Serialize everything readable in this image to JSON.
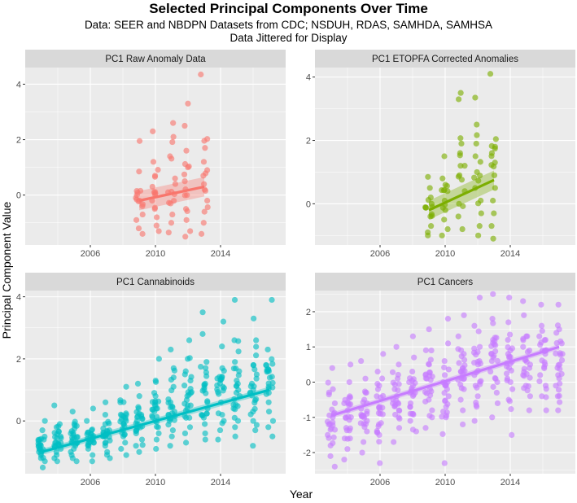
{
  "title": "Selected Principal Components Over Time",
  "subtitle_line1": "Data: SEER and NBDPN Datasets from CDC; NSDUH, RDAS, SAMHDA, SAMHSA",
  "subtitle_line2": "Data Jittered for Display",
  "xlabel": "Year",
  "ylabel": "Principal Component Value",
  "chart_data": [
    {
      "type": "scatter",
      "title": "PC1 Raw Anomaly Data",
      "color": "#F8766D",
      "xlim": [
        2002,
        2018
      ],
      "ylim": [
        -1.8,
        4.6
      ],
      "xticks": [
        2006,
        2010,
        2014
      ],
      "yticks": [
        0,
        2,
        4
      ],
      "x_range": [
        2009,
        2013
      ],
      "trend": {
        "x0": 2009,
        "y0": -0.2,
        "x1": 2013,
        "y1": 0.3,
        "band0": 0.35,
        "band1": 0.35
      },
      "groups": [
        {
          "x": 2009,
          "values": [
            1.95,
            0.85,
            0.15,
            -0.1,
            -0.4,
            -0.7,
            -0.9,
            -1.2,
            -1.4,
            0.0
          ]
        },
        {
          "x": 2010,
          "values": [
            2.3,
            1.2,
            0.7,
            0.3,
            -0.2,
            -0.5,
            -0.8,
            -1.1,
            -1.3,
            0.1
          ]
        },
        {
          "x": 2011,
          "values": [
            2.6,
            2.1,
            1.4,
            0.6,
            0.1,
            -0.3,
            -0.7,
            -1.0,
            -1.35,
            0.4
          ]
        },
        {
          "x": 2012,
          "values": [
            3.3,
            2.5,
            1.6,
            1.0,
            0.5,
            0.0,
            -0.5,
            -0.9,
            -1.3,
            -1.5
          ]
        },
        {
          "x": 2013,
          "values": [
            4.35,
            1.7,
            1.2,
            0.7,
            0.2,
            -0.2,
            -0.6,
            -1.0,
            -1.4,
            0.9
          ]
        }
      ]
    },
    {
      "type": "scatter",
      "title": "PC1 ETOPFA Corrected Anomalies",
      "color": "#7CAE00",
      "xlim": [
        2002,
        2018
      ],
      "ylim": [
        -1.3,
        4.3
      ],
      "xticks": [
        2006,
        2010,
        2014
      ],
      "yticks": [
        0,
        2,
        4
      ],
      "x_range": [
        2009,
        2013
      ],
      "trend": {
        "x0": 2009,
        "y0": -0.2,
        "x1": 2013,
        "y1": 0.75,
        "band0": 0.3,
        "band1": 0.3
      },
      "groups": [
        {
          "x": 2009,
          "values": [
            0.85,
            0.5,
            0.2,
            -0.1,
            -0.4,
            -0.7,
            -0.9,
            -1.0,
            0.0
          ]
        },
        {
          "x": 2010,
          "values": [
            1.5,
            0.8,
            0.4,
            0.1,
            -0.2,
            -0.5,
            -0.8,
            -1.0,
            0.6
          ]
        },
        {
          "x": 2011,
          "values": [
            3.5,
            3.3,
            1.9,
            1.6,
            0.9,
            0.4,
            0.0,
            -0.4,
            -0.8,
            1.2
          ]
        },
        {
          "x": 2012,
          "values": [
            3.35,
            2.5,
            1.5,
            1.0,
            0.5,
            0.1,
            -0.3,
            -0.7,
            -1.0,
            1.9
          ]
        },
        {
          "x": 2013,
          "values": [
            4.1,
            1.8,
            1.3,
            0.9,
            0.5,
            0.1,
            -0.3,
            -0.7,
            -1.1,
            1.6
          ]
        }
      ]
    },
    {
      "type": "scatter",
      "title": "PC1 Cannabinoids",
      "color": "#00BFC4",
      "xlim": [
        2002,
        2018
      ],
      "ylim": [
        -1.7,
        4.2
      ],
      "xticks": [
        2006,
        2010,
        2014
      ],
      "yticks": [
        0,
        2,
        4
      ],
      "x_range": [
        2003,
        2017
      ],
      "trend": {
        "x0": 2003,
        "y0": -1.0,
        "x1": 2017,
        "y1": 1.0,
        "band0": 0.1,
        "band1": 0.1
      },
      "groups": [
        {
          "x": 2003,
          "values": [
            0.0,
            -0.3,
            -0.6,
            -0.8,
            -1.0,
            -1.1,
            -1.2,
            -1.3,
            -1.5,
            -0.9
          ]
        },
        {
          "x": 2004,
          "values": [
            0.5,
            -0.2,
            -0.5,
            -0.7,
            -0.9,
            -1.0,
            -1.1,
            -1.2,
            -1.3,
            -0.8
          ]
        },
        {
          "x": 2005,
          "values": [
            0.3,
            -0.1,
            -0.4,
            -0.6,
            -0.8,
            -0.9,
            -1.0,
            -1.2,
            -1.3,
            -0.7
          ]
        },
        {
          "x": 2006,
          "values": [
            0.4,
            0.0,
            -0.3,
            -0.5,
            -0.7,
            -0.8,
            -0.9,
            -1.1,
            -1.3,
            -0.6
          ]
        },
        {
          "x": 2007,
          "values": [
            0.6,
            0.2,
            -0.1,
            -0.3,
            -0.5,
            -0.7,
            -0.8,
            -1.0,
            -1.2,
            -0.4
          ]
        },
        {
          "x": 2008,
          "values": [
            1.1,
            0.6,
            0.2,
            -0.1,
            -0.3,
            -0.5,
            -0.7,
            -0.9,
            -1.1,
            0.0
          ]
        },
        {
          "x": 2009,
          "values": [
            1.2,
            0.8,
            0.4,
            0.0,
            -0.2,
            -0.4,
            -0.6,
            -0.8,
            -1.0,
            0.2
          ]
        },
        {
          "x": 2010,
          "values": [
            2.0,
            1.3,
            0.8,
            0.4,
            0.0,
            -0.2,
            -0.4,
            -0.6,
            -0.9,
            0.6
          ]
        },
        {
          "x": 2011,
          "values": [
            2.3,
            1.7,
            1.1,
            0.6,
            0.2,
            0.0,
            -0.3,
            -0.5,
            -0.8,
            1.4
          ]
        },
        {
          "x": 2012,
          "values": [
            2.6,
            2.0,
            1.3,
            0.8,
            0.4,
            0.1,
            -0.2,
            -0.4,
            -0.7,
            1.6
          ]
        },
        {
          "x": 2013,
          "values": [
            3.5,
            2.8,
            1.9,
            1.2,
            0.6,
            0.2,
            -0.1,
            -0.4,
            -0.6,
            1.0
          ]
        },
        {
          "x": 2014,
          "values": [
            3.2,
            2.4,
            1.7,
            1.1,
            0.6,
            0.2,
            0.0,
            -0.3,
            -0.6,
            1.4
          ]
        },
        {
          "x": 2015,
          "values": [
            3.9,
            2.6,
            1.9,
            1.3,
            0.8,
            0.4,
            0.1,
            -0.2,
            -0.5,
            1.6
          ]
        },
        {
          "x": 2016,
          "values": [
            3.3,
            2.6,
            1.8,
            1.2,
            0.7,
            0.3,
            0.0,
            -0.3,
            -0.8,
            1.0
          ]
        },
        {
          "x": 2017,
          "values": [
            3.9,
            2.3,
            1.6,
            1.1,
            0.6,
            0.3,
            0.0,
            -0.2,
            -0.5,
            1.8
          ]
        }
      ]
    },
    {
      "type": "scatter",
      "title": "PC1 Cancers",
      "color": "#C77CFF",
      "xlim": [
        2002,
        2018
      ],
      "ylim": [
        -2.6,
        2.6
      ],
      "xticks": [
        2006,
        2010,
        2014
      ],
      "yticks": [
        -2,
        -1,
        0,
        1,
        2
      ],
      "x_range": [
        2003,
        2017
      ],
      "trend": {
        "x0": 2003,
        "y0": -0.95,
        "x1": 2017,
        "y1": 1.0,
        "band0": 0.08,
        "band1": 0.08
      },
      "groups": [
        {
          "x": 2003,
          "values": [
            0.4,
            -0.2,
            -0.6,
            -0.9,
            -1.2,
            -1.5,
            -1.8,
            -2.1,
            -2.4,
            -1.0
          ]
        },
        {
          "x": 2004,
          "values": [
            0.5,
            0.0,
            -0.4,
            -0.8,
            -1.0,
            -1.3,
            -1.6,
            -1.9,
            -2.2,
            -0.6
          ]
        },
        {
          "x": 2005,
          "values": [
            0.6,
            0.1,
            -0.3,
            -0.6,
            -0.9,
            -1.1,
            -1.4,
            -1.7,
            -2.0,
            -0.5
          ]
        },
        {
          "x": 2006,
          "values": [
            0.8,
            0.3,
            -0.1,
            -0.4,
            -0.7,
            -0.9,
            -1.2,
            -1.5,
            -2.3,
            -0.2
          ]
        },
        {
          "x": 2007,
          "values": [
            1.0,
            0.5,
            0.1,
            -0.2,
            -0.5,
            -0.8,
            -1.0,
            -1.3,
            -1.7,
            -0.4
          ]
        },
        {
          "x": 2008,
          "values": [
            1.3,
            0.7,
            0.3,
            0.0,
            -0.3,
            -0.6,
            -0.9,
            -1.1,
            -1.4,
            -0.1
          ]
        },
        {
          "x": 2009,
          "values": [
            1.5,
            0.9,
            0.5,
            0.1,
            -0.2,
            -0.5,
            -0.8,
            -1.0,
            -1.3,
            0.2
          ]
        },
        {
          "x": 2010,
          "values": [
            1.8,
            1.1,
            0.6,
            0.2,
            -0.1,
            -0.4,
            -0.7,
            -1.0,
            -2.3,
            0.0
          ]
        },
        {
          "x": 2011,
          "values": [
            1.9,
            1.3,
            0.8,
            0.4,
            0.1,
            -0.2,
            -0.5,
            -0.8,
            -1.2,
            0.3
          ]
        },
        {
          "x": 2012,
          "values": [
            2.4,
            1.6,
            1.0,
            0.6,
            0.2,
            -0.1,
            -0.4,
            -0.7,
            -1.1,
            0.5
          ]
        },
        {
          "x": 2013,
          "values": [
            2.5,
            1.8,
            1.2,
            0.7,
            0.3,
            0.0,
            -0.3,
            -0.6,
            -1.0,
            0.6
          ]
        },
        {
          "x": 2014,
          "values": [
            2.4,
            1.7,
            1.2,
            0.8,
            0.4,
            0.1,
            -0.2,
            -0.5,
            -1.5,
            0.9
          ]
        },
        {
          "x": 2015,
          "values": [
            2.3,
            1.9,
            1.3,
            0.9,
            0.5,
            0.2,
            -0.1,
            -0.4,
            -0.8,
            1.0
          ]
        },
        {
          "x": 2016,
          "values": [
            2.2,
            1.6,
            1.2,
            0.9,
            0.5,
            0.2,
            -0.1,
            -0.4,
            -0.8,
            1.3
          ]
        },
        {
          "x": 2017,
          "values": [
            2.2,
            1.5,
            1.1,
            0.8,
            0.5,
            0.2,
            -0.1,
            -0.4,
            -0.8,
            1.4
          ]
        }
      ]
    }
  ]
}
